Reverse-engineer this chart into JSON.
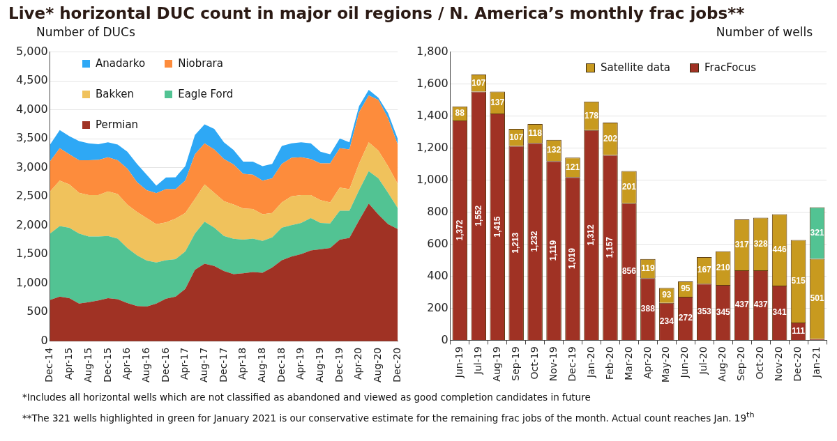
{
  "chart_data": [
    {
      "type": "area",
      "title": "Live* horizontal DUC count in major oil regions / N. America’s monthly frac jobs**",
      "ylabel": "Number of DUCs",
      "stacked": true,
      "legend": "top left",
      "grid": "y",
      "annotations": [
        "*Includes all horizontal wells which are not classified as abandoned and viewed as good completion candidates in future",
        "**The 321 wells highlighted in green for January 2021 is our conservative estimate for the remaining frac jobs of the month. Actual count reaches Jan. 19$^{th}$"
      ],
      "x": [
        "2014-12",
        "2015-02",
        "2015-04",
        "2015-06",
        "2015-08",
        "2015-10",
        "2015-12",
        "2016-02",
        "2016-04",
        "2016-06",
        "2016-08",
        "2016-10",
        "2016-12",
        "2017-02",
        "2017-04",
        "2017-06",
        "2017-08",
        "2017-10",
        "2017-12",
        "2018-02",
        "2018-04",
        "2018-06",
        "2018-08",
        "2018-10",
        "2018-12",
        "2019-02",
        "2019-04",
        "2019-06",
        "2019-08",
        "2019-10",
        "2019-12",
        "2020-02",
        "2020-04",
        "2020-06",
        "2020-08",
        "2020-10",
        "2020-12"
      ],
      "xlim": [
        "2014-12",
        "2020-12"
      ],
      "xticks": [
        {
          "value": "2014-12",
          "label": "Dec-14"
        },
        {
          "value": "2015-04",
          "label": "Apr-15"
        },
        {
          "value": "2015-08",
          "label": "Aug-15"
        },
        {
          "value": "2015-12",
          "label": "Dec-15"
        },
        {
          "value": "2016-04",
          "label": "Apr-16"
        },
        {
          "value": "2016-08",
          "label": "Aug-16"
        },
        {
          "value": "2016-12",
          "label": "Dec-16"
        },
        {
          "value": "2017-04",
          "label": "Apr-17"
        },
        {
          "value": "2017-08",
          "label": "Aug-17"
        },
        {
          "value": "2017-12",
          "label": "Dec-17"
        },
        {
          "value": "2018-04",
          "label": "Apr-18"
        },
        {
          "value": "2018-08",
          "label": "Aug-18"
        },
        {
          "value": "2018-12",
          "label": "Dec-18"
        },
        {
          "value": "2019-04",
          "label": "Apr-19"
        },
        {
          "value": "2019-08",
          "label": "Aug-19"
        },
        {
          "value": "2019-12",
          "label": "Dec-19"
        },
        {
          "value": "2020-04",
          "label": "Apr-20"
        },
        {
          "value": "2020-08",
          "label": "Aug-20"
        },
        {
          "value": "2020-12",
          "label": "Dec-20"
        }
      ],
      "ylim": [
        0,
        5000
      ],
      "yticks": [
        {
          "value": 0,
          "label": "0"
        },
        {
          "value": 500,
          "label": "500"
        },
        {
          "value": 1000,
          "label": "1,000"
        },
        {
          "value": 1500,
          "label": "1,500"
        },
        {
          "value": 2000,
          "label": "2,000"
        },
        {
          "value": 2500,
          "label": "2,500"
        },
        {
          "value": 3000,
          "label": "3,000"
        },
        {
          "value": 3500,
          "label": "3,500"
        },
        {
          "value": 4000,
          "label": "4,000"
        },
        {
          "value": 4500,
          "label": "4,500"
        },
        {
          "value": 5000,
          "label": "5,000"
        }
      ],
      "series": [
        {
          "name": "Permian",
          "color": "#a03224",
          "values": [
            715,
            770,
            745,
            650,
            675,
            705,
            745,
            725,
            660,
            610,
            600,
            650,
            735,
            770,
            905,
            1235,
            1340,
            1300,
            1215,
            1160,
            1175,
            1195,
            1185,
            1275,
            1400,
            1465,
            1505,
            1570,
            1590,
            1610,
            1755,
            1785,
            2090,
            2380,
            2190,
            2025,
            1940
          ]
        },
        {
          "name": "Eagle Ford",
          "color": "#52c393",
          "values": [
            1145,
            1220,
            1215,
            1210,
            1135,
            1105,
            1075,
            1050,
            950,
            875,
            795,
            710,
            665,
            650,
            645,
            625,
            725,
            665,
            605,
            610,
            580,
            580,
            550,
            520,
            565,
            540,
            540,
            560,
            455,
            425,
            500,
            470,
            520,
            560,
            625,
            540,
            360
          ]
        },
        {
          "name": "Bakken",
          "color": "#f0c25c",
          "values": [
            730,
            785,
            750,
            705,
            715,
            715,
            770,
            770,
            750,
            750,
            735,
            665,
            655,
            700,
            665,
            600,
            645,
            600,
            600,
            595,
            540,
            510,
            460,
            420,
            435,
            500,
            480,
            395,
            395,
            365,
            400,
            375,
            460,
            500,
            480,
            460,
            420
          ]
        },
        {
          "name": "Niobrara",
          "color": "#fd8c3c",
          "values": [
            520,
            560,
            520,
            565,
            605,
            610,
            590,
            585,
            625,
            515,
            480,
            535,
            575,
            510,
            560,
            770,
            710,
            750,
            730,
            690,
            600,
            595,
            580,
            600,
            665,
            665,
            655,
            625,
            635,
            675,
            680,
            685,
            890,
            810,
            875,
            830,
            680
          ]
        },
        {
          "name": "Anadarko",
          "color": "#2ea8f5",
          "values": [
            290,
            315,
            315,
            330,
            290,
            270,
            260,
            270,
            290,
            315,
            270,
            130,
            200,
            205,
            250,
            335,
            330,
            355,
            290,
            250,
            210,
            225,
            250,
            250,
            310,
            250,
            260,
            270,
            200,
            155,
            170,
            125,
            105,
            95,
            40,
            85,
            100
          ]
        }
      ]
    },
    {
      "type": "bar",
      "ylabel": "Number of wells",
      "stacked": true,
      "legend": "top",
      "grid": "y",
      "categories": [
        "Jun-19",
        "Jul-19",
        "Aug-19",
        "Sep-19",
        "Oct-19",
        "Nov-19",
        "Dec-19",
        "Jan-20",
        "Feb-20",
        "Mar-20",
        "Apr-20",
        "May-20",
        "Jun-20",
        "Jul-20",
        "Aug-20",
        "Sep-20",
        "Oct-20",
        "Nov-20",
        "Dec-20",
        "Jan-21"
      ],
      "ylim": [
        0,
        1800
      ],
      "yticks": [
        {
          "value": 0,
          "label": "0"
        },
        {
          "value": 200,
          "label": "200"
        },
        {
          "value": 400,
          "label": "400"
        },
        {
          "value": 600,
          "label": "600"
        },
        {
          "value": 800,
          "label": "800"
        },
        {
          "value": 1000,
          "label": "1,000"
        },
        {
          "value": 1200,
          "label": "1,200"
        },
        {
          "value": 1400,
          "label": "1,400"
        },
        {
          "value": 1600,
          "label": "1,600"
        },
        {
          "value": 1800,
          "label": "1,800"
        }
      ],
      "series": [
        {
          "name": "FracFocus",
          "color": "#a03224",
          "values": [
            1372,
            1552,
            1415,
            1213,
            1232,
            1119,
            1019,
            1312,
            1157,
            856,
            388,
            234,
            272,
            353,
            345,
            437,
            437,
            341,
            111,
            8
          ],
          "value_labels": [
            "1,372",
            "1,552",
            "1,415",
            "1,213",
            "1,232",
            "1,119",
            "1,019",
            "1,312",
            "1,157",
            "856",
            "388",
            "234",
            "272",
            "353",
            "345",
            "437",
            "437",
            "341",
            "111",
            null
          ]
        },
        {
          "name": "Satellite data",
          "color": "#c89a1f",
          "values": [
            88,
            107,
            137,
            107,
            118,
            132,
            121,
            178,
            202,
            201,
            119,
            93,
            95,
            167,
            210,
            317,
            328,
            446,
            515,
            501
          ],
          "value_labels": [
            "88",
            "107",
            "137",
            "107",
            "118",
            "132",
            "121",
            "178",
            "202",
            "201",
            "119",
            "93",
            "95",
            "167",
            "210",
            "317",
            "328",
            "446",
            "515",
            "501"
          ]
        },
        {
          "color": "#52c393",
          "values": [
            null,
            null,
            null,
            null,
            null,
            null,
            null,
            null,
            null,
            null,
            null,
            null,
            null,
            null,
            null,
            null,
            null,
            null,
            null,
            321
          ],
          "value_labels": [
            null,
            null,
            null,
            null,
            null,
            null,
            null,
            null,
            null,
            null,
            null,
            null,
            null,
            null,
            null,
            null,
            null,
            null,
            null,
            "321"
          ]
        }
      ]
    }
  ]
}
